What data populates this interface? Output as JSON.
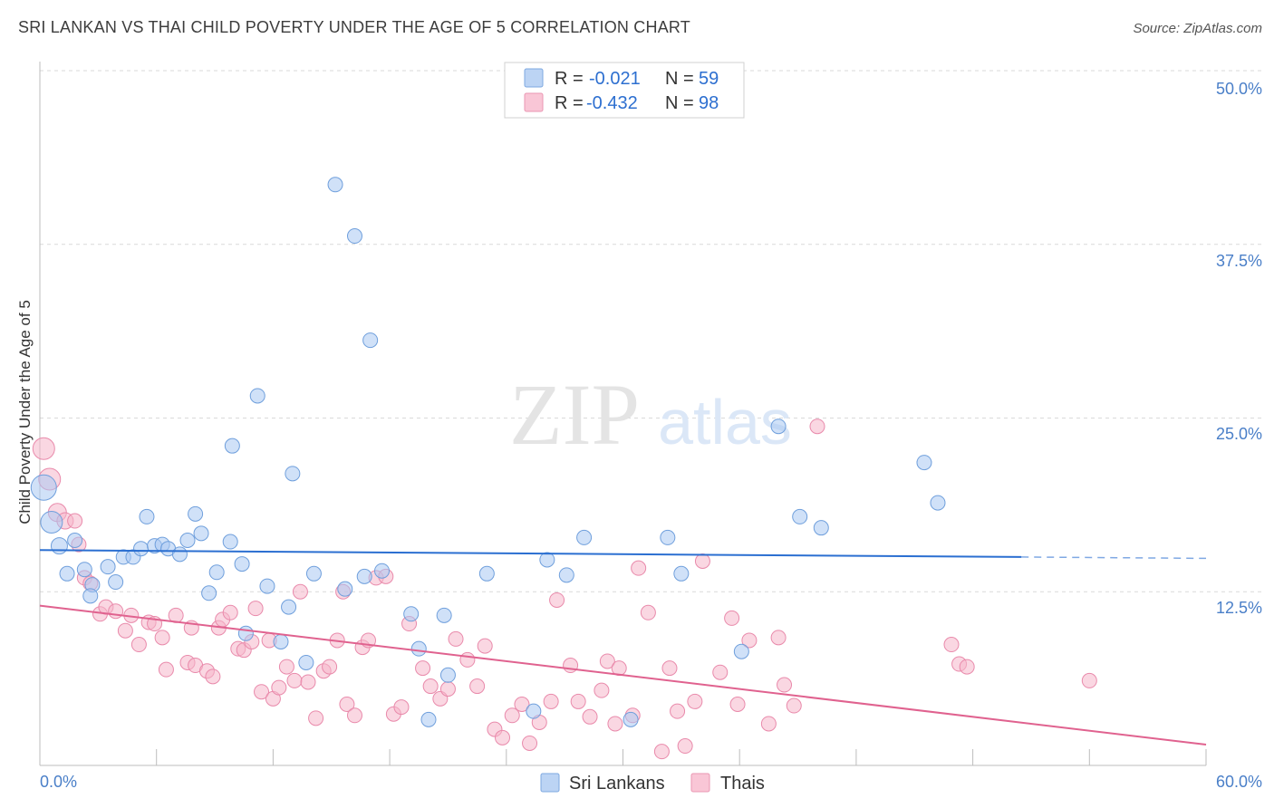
{
  "title": "SRI LANKAN VS THAI CHILD POVERTY UNDER THE AGE OF 5 CORRELATION CHART",
  "source": "Source: ZipAtlas.com",
  "watermark": {
    "zip": "ZIP",
    "atlas": "atlas"
  },
  "colors": {
    "blue_fill": "#a9c9f2",
    "blue_stroke": "#6f9fdc",
    "blue_line": "#2b6fd1",
    "pink_fill": "#f6b6cb",
    "pink_stroke": "#e98aab",
    "pink_line": "#e0628f",
    "grid": "#d9d9d9",
    "tick_label": "#4a7fc8"
  },
  "chart_data": {
    "type": "scatter",
    "title": "SRI LANKAN VS THAI CHILD POVERTY UNDER THE AGE OF 5 CORRELATION CHART",
    "xlabel": "",
    "ylabel": "Child Poverty Under the Age of 5",
    "xlim": [
      0,
      60
    ],
    "ylim": [
      0,
      50
    ],
    "x_tick_labels": [
      "0.0%",
      "60.0%"
    ],
    "y_ticks": [
      12.5,
      25.0,
      37.5,
      50.0
    ],
    "y_tick_labels": [
      "12.5%",
      "25.0%",
      "37.5%",
      "50.0%"
    ],
    "legend": {
      "r_label": "R =",
      "n_label": "N =",
      "entries": [
        {
          "name": "Sri Lankans",
          "r": "-0.021",
          "n": "59"
        },
        {
          "name": "Thais",
          "r": "-0.432",
          "n": "98"
        }
      ]
    },
    "series": [
      {
        "name": "Sri Lankans",
        "trend": {
          "x0": 0,
          "y0": 15.5,
          "x1": 50.5,
          "y1": 15.0,
          "dash_to_x": 60,
          "dash_to_y": 14.9
        },
        "points": [
          [
            0.2,
            20.0,
            14
          ],
          [
            0.6,
            17.5,
            12
          ],
          [
            1.0,
            15.8,
            9
          ],
          [
            1.4,
            13.8,
            8
          ],
          [
            1.8,
            16.2,
            8
          ],
          [
            2.3,
            14.1,
            8
          ],
          [
            2.7,
            13.0,
            8
          ],
          [
            2.6,
            12.2,
            8
          ],
          [
            3.5,
            14.3,
            8
          ],
          [
            3.9,
            13.2,
            8
          ],
          [
            4.3,
            15.0,
            8
          ],
          [
            4.8,
            15.0,
            8
          ],
          [
            5.2,
            15.6,
            8
          ],
          [
            5.5,
            17.9,
            8
          ],
          [
            5.9,
            15.8,
            8
          ],
          [
            6.3,
            15.9,
            8
          ],
          [
            6.6,
            15.6,
            8
          ],
          [
            7.2,
            15.2,
            8
          ],
          [
            7.6,
            16.2,
            8
          ],
          [
            8.0,
            18.1,
            8
          ],
          [
            8.3,
            16.7,
            8
          ],
          [
            8.7,
            12.4,
            8
          ],
          [
            9.1,
            13.9,
            8
          ],
          [
            9.8,
            16.1,
            8
          ],
          [
            9.9,
            23.0,
            8
          ],
          [
            10.4,
            14.5,
            8
          ],
          [
            10.6,
            9.5,
            8
          ],
          [
            11.2,
            26.6,
            8
          ],
          [
            11.7,
            12.9,
            8
          ],
          [
            12.4,
            8.9,
            8
          ],
          [
            12.8,
            11.4,
            8
          ],
          [
            13.0,
            21.0,
            8
          ],
          [
            13.7,
            7.4,
            8
          ],
          [
            14.1,
            13.8,
            8
          ],
          [
            15.2,
            41.8,
            8
          ],
          [
            15.7,
            12.7,
            8
          ],
          [
            16.2,
            38.1,
            8
          ],
          [
            16.7,
            13.6,
            8
          ],
          [
            17.0,
            30.6,
            8
          ],
          [
            17.6,
            14.0,
            8
          ],
          [
            19.1,
            10.9,
            8
          ],
          [
            19.5,
            8.4,
            8
          ],
          [
            20.0,
            3.3,
            8
          ],
          [
            20.8,
            10.8,
            8
          ],
          [
            21.0,
            6.5,
            8
          ],
          [
            23.0,
            13.8,
            8
          ],
          [
            25.4,
            3.9,
            8
          ],
          [
            26.1,
            14.8,
            8
          ],
          [
            27.1,
            13.7,
            8
          ],
          [
            28.0,
            16.4,
            8
          ],
          [
            30.4,
            3.3,
            8
          ],
          [
            32.3,
            16.4,
            8
          ],
          [
            33.0,
            13.8,
            8
          ],
          [
            36.1,
            8.2,
            8
          ],
          [
            38.0,
            24.4,
            8
          ],
          [
            39.1,
            17.9,
            8
          ],
          [
            40.2,
            17.1,
            8
          ],
          [
            45.5,
            21.8,
            8
          ],
          [
            46.2,
            18.9,
            8
          ]
        ]
      },
      {
        "name": "Thais",
        "trend": {
          "x0": 0,
          "y0": 11.5,
          "x1": 60,
          "y1": 1.5
        },
        "points": [
          [
            0.2,
            22.8,
            12
          ],
          [
            0.5,
            20.6,
            12
          ],
          [
            0.9,
            18.2,
            10
          ],
          [
            1.3,
            17.6,
            9
          ],
          [
            1.8,
            17.6,
            8
          ],
          [
            2.0,
            15.9,
            8
          ],
          [
            2.3,
            13.5,
            8
          ],
          [
            2.6,
            13.1,
            8
          ],
          [
            3.1,
            10.9,
            8
          ],
          [
            3.4,
            11.4,
            8
          ],
          [
            3.9,
            11.1,
            8
          ],
          [
            4.4,
            9.7,
            8
          ],
          [
            4.7,
            10.8,
            8
          ],
          [
            5.1,
            8.7,
            8
          ],
          [
            5.6,
            10.3,
            8
          ],
          [
            5.9,
            10.2,
            8
          ],
          [
            6.3,
            9.2,
            8
          ],
          [
            6.5,
            6.9,
            8
          ],
          [
            7.0,
            10.8,
            8
          ],
          [
            7.6,
            7.4,
            8
          ],
          [
            7.8,
            9.9,
            8
          ],
          [
            8.0,
            7.2,
            8
          ],
          [
            8.6,
            6.8,
            8
          ],
          [
            8.9,
            6.4,
            8
          ],
          [
            9.2,
            9.9,
            8
          ],
          [
            9.4,
            10.5,
            8
          ],
          [
            9.8,
            11.0,
            8
          ],
          [
            10.2,
            8.4,
            8
          ],
          [
            10.5,
            8.3,
            8
          ],
          [
            10.9,
            8.9,
            8
          ],
          [
            11.1,
            11.3,
            8
          ],
          [
            11.4,
            5.3,
            8
          ],
          [
            11.8,
            9.0,
            8
          ],
          [
            12.0,
            4.8,
            8
          ],
          [
            12.3,
            5.6,
            8
          ],
          [
            12.7,
            7.1,
            8
          ],
          [
            13.1,
            6.1,
            8
          ],
          [
            13.4,
            12.5,
            8
          ],
          [
            13.8,
            6.0,
            8
          ],
          [
            14.2,
            3.4,
            8
          ],
          [
            14.6,
            6.8,
            8
          ],
          [
            14.9,
            7.1,
            8
          ],
          [
            15.3,
            9.0,
            8
          ],
          [
            15.6,
            12.5,
            8
          ],
          [
            15.8,
            4.4,
            8
          ],
          [
            16.2,
            3.6,
            8
          ],
          [
            16.6,
            8.5,
            8
          ],
          [
            16.9,
            9.0,
            8
          ],
          [
            17.3,
            13.5,
            8
          ],
          [
            17.8,
            13.6,
            8
          ],
          [
            18.2,
            3.7,
            8
          ],
          [
            18.6,
            4.2,
            8
          ],
          [
            19.0,
            10.2,
            8
          ],
          [
            19.7,
            7.0,
            8
          ],
          [
            20.1,
            5.7,
            8
          ],
          [
            20.6,
            4.8,
            8
          ],
          [
            21.0,
            5.5,
            8
          ],
          [
            21.4,
            9.1,
            8
          ],
          [
            22.0,
            7.6,
            8
          ],
          [
            22.5,
            5.7,
            8
          ],
          [
            22.9,
            8.6,
            8
          ],
          [
            23.4,
            2.6,
            8
          ],
          [
            23.8,
            2.0,
            8
          ],
          [
            24.3,
            3.6,
            8
          ],
          [
            24.8,
            4.4,
            8
          ],
          [
            25.2,
            1.6,
            8
          ],
          [
            25.7,
            3.1,
            8
          ],
          [
            26.3,
            4.6,
            8
          ],
          [
            26.6,
            11.9,
            8
          ],
          [
            27.3,
            7.2,
            8
          ],
          [
            27.7,
            4.6,
            8
          ],
          [
            28.3,
            3.5,
            8
          ],
          [
            28.9,
            5.4,
            8
          ],
          [
            29.2,
            7.5,
            8
          ],
          [
            29.6,
            3.0,
            8
          ],
          [
            29.8,
            7.0,
            8
          ],
          [
            30.5,
            3.6,
            8
          ],
          [
            30.8,
            14.2,
            8
          ],
          [
            31.3,
            11.0,
            8
          ],
          [
            32.0,
            1.0,
            8
          ],
          [
            32.4,
            7.0,
            8
          ],
          [
            32.8,
            3.9,
            8
          ],
          [
            33.2,
            1.4,
            8
          ],
          [
            33.7,
            4.6,
            8
          ],
          [
            34.1,
            14.7,
            8
          ],
          [
            35.0,
            6.7,
            8
          ],
          [
            35.6,
            10.6,
            8
          ],
          [
            35.9,
            4.4,
            8
          ],
          [
            36.5,
            9.0,
            8
          ],
          [
            37.5,
            3.0,
            8
          ],
          [
            38.0,
            9.2,
            8
          ],
          [
            38.3,
            5.8,
            8
          ],
          [
            38.8,
            4.3,
            8
          ],
          [
            40.0,
            24.4,
            8
          ],
          [
            46.9,
            8.7,
            8
          ],
          [
            47.3,
            7.3,
            8
          ],
          [
            47.7,
            7.1,
            8
          ],
          [
            54.0,
            6.1,
            8
          ]
        ]
      }
    ]
  }
}
